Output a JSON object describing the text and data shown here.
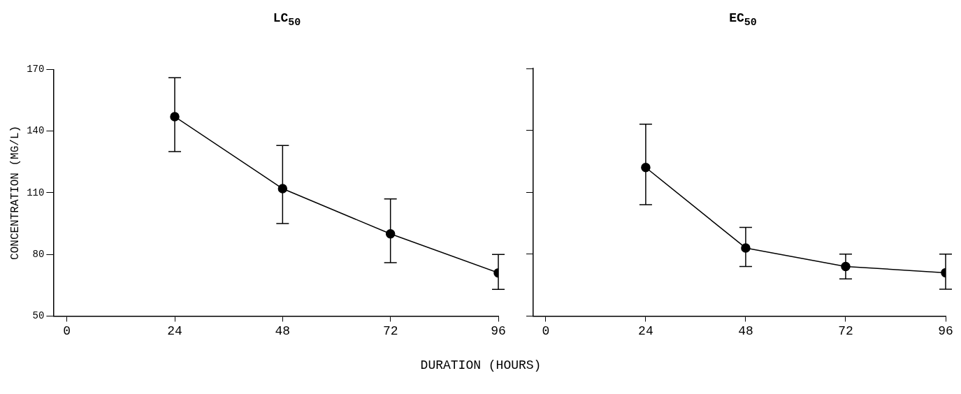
{
  "chart_data": [
    {
      "type": "line",
      "title": "LC$_{50}$",
      "xlabel": "DURATION (HOURS)",
      "ylabel": "CONCENTRATION (MG/L)",
      "x": [
        24,
        48,
        72,
        96
      ],
      "values": [
        147,
        112,
        90,
        71
      ],
      "errors": [
        [
          130,
          166
        ],
        [
          95,
          133
        ],
        [
          76,
          107
        ],
        [
          63,
          80
        ]
      ],
      "color": "#000000",
      "xlim": [
        -3,
        96
      ],
      "xticks": [
        0,
        24,
        48,
        72,
        96
      ],
      "ylim": [
        50,
        170
      ],
      "yticks": [
        50,
        80,
        110,
        140,
        170
      ],
      "grid": false,
      "legend": false,
      "marker": "circle",
      "line_style": "solid"
    },
    {
      "type": "line",
      "title": "EC$_{50}$",
      "x": [
        24,
        48,
        72,
        96
      ],
      "values": [
        122,
        83,
        74,
        71
      ],
      "errors": [
        [
          104,
          143
        ],
        [
          74,
          93
        ],
        [
          68,
          80
        ],
        [
          63,
          80
        ]
      ],
      "color": "#000000",
      "xlim": [
        -3,
        96
      ],
      "xticks": [
        0,
        24,
        48,
        72,
        96
      ],
      "ylim": [
        50,
        170
      ],
      "yticks": [
        50,
        80,
        110,
        140,
        170
      ],
      "grid": false,
      "legend": false,
      "marker": "circle",
      "line_style": "solid",
      "tick_labels": "x"
    }
  ]
}
